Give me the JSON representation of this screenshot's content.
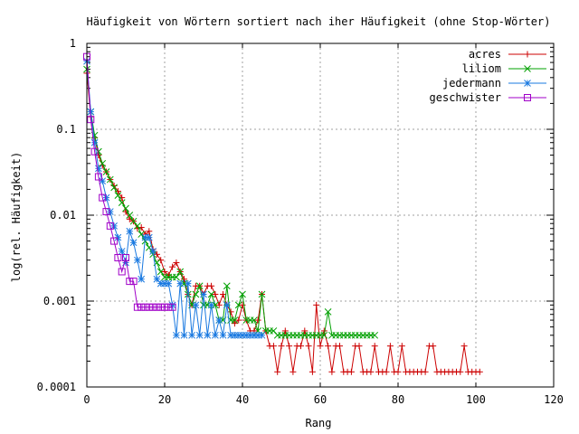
{
  "chart_data": {
    "type": "line",
    "title": "Häufigkeit von Wörtern sortiert nach iher Häufigkeit (ohne Stop-Wörter)",
    "xlabel": "Rang",
    "ylabel": "log(rel. Häufigkeit)",
    "xlim": [
      0,
      120
    ],
    "ylim": [
      0.0001,
      1
    ],
    "yscale": "log",
    "grid": true,
    "legend_position": "top-right",
    "x_ticks": [
      "0",
      "20",
      "40",
      "60",
      "80",
      "100",
      "120"
    ],
    "y_ticks": [
      "0.0001",
      "0.001",
      "0.01",
      "0.1",
      "1"
    ],
    "series": [
      {
        "name": "acres",
        "color": "#cc0000",
        "marker": "plus",
        "x": [
          0,
          1,
          2,
          3,
          4,
          5,
          6,
          7,
          8,
          9,
          10,
          11,
          12,
          13,
          14,
          15,
          16,
          17,
          18,
          19,
          20,
          21,
          22,
          23,
          24,
          25,
          26,
          27,
          28,
          29,
          30,
          31,
          32,
          33,
          34,
          35,
          36,
          37,
          38,
          39,
          40,
          41,
          42,
          43,
          44,
          45,
          46,
          47,
          48,
          49,
          50,
          51,
          52,
          53,
          54,
          55,
          56,
          57,
          58,
          59,
          60,
          61,
          62,
          63,
          64,
          65,
          66,
          67,
          68,
          69,
          70,
          71,
          72,
          73,
          74,
          75,
          76,
          77,
          78,
          79,
          80,
          81,
          82,
          83,
          84,
          85,
          86,
          87,
          88,
          89,
          90,
          91,
          92,
          93,
          94,
          95,
          96,
          97,
          98,
          99,
          100,
          101
        ],
        "values": [
          0.45,
          0.14,
          0.08,
          0.05,
          0.038,
          0.032,
          0.026,
          0.022,
          0.019,
          0.016,
          0.011,
          0.009,
          0.0085,
          0.007,
          0.0072,
          0.006,
          0.0065,
          0.004,
          0.0035,
          0.003,
          0.0022,
          0.002,
          0.0025,
          0.0028,
          0.0022,
          0.0018,
          0.0012,
          0.0009,
          0.0015,
          0.0015,
          0.0012,
          0.0015,
          0.0015,
          0.0012,
          0.0009,
          0.0012,
          0.0009,
          0.00075,
          0.00055,
          0.0006,
          0.0009,
          0.0006,
          0.00045,
          0.00045,
          0.0006,
          0.0012,
          0.00045,
          0.0003,
          0.0003,
          0.00015,
          0.0003,
          0.00045,
          0.0003,
          0.00015,
          0.0003,
          0.0003,
          0.00045,
          0.0003,
          0.00015,
          0.0009,
          0.0003,
          0.00045,
          0.0003,
          0.00015,
          0.0003,
          0.0003,
          0.00015,
          0.00015,
          0.00015,
          0.0003,
          0.0003,
          0.00015,
          0.00015,
          0.00015,
          0.0003,
          0.00015,
          0.00015,
          0.00015,
          0.0003,
          0.00015,
          0.00015,
          0.0003,
          0.00015,
          0.00015,
          0.00015,
          0.00015,
          0.00015,
          0.00015,
          0.0003,
          0.0003,
          0.00015,
          0.00015,
          0.00015,
          0.00015,
          0.00015,
          0.00015,
          0.00015,
          0.0003,
          0.00015,
          0.00015,
          0.00015,
          0.00015
        ]
      },
      {
        "name": "liliom",
        "color": "#00a000",
        "marker": "cross",
        "x": [
          0,
          1,
          2,
          3,
          4,
          5,
          6,
          7,
          8,
          9,
          10,
          11,
          12,
          13,
          14,
          15,
          16,
          17,
          18,
          19,
          20,
          21,
          22,
          23,
          24,
          25,
          26,
          27,
          28,
          29,
          30,
          31,
          32,
          33,
          34,
          35,
          36,
          37,
          38,
          39,
          40,
          41,
          42,
          43,
          44,
          45,
          46,
          47,
          48,
          49,
          50,
          51,
          52,
          53,
          54,
          55,
          56,
          57,
          58,
          59,
          60,
          61,
          62,
          63,
          64,
          65,
          66,
          67,
          68,
          69,
          70,
          71,
          72,
          73,
          74
        ],
        "values": [
          0.5,
          0.16,
          0.085,
          0.055,
          0.04,
          0.032,
          0.026,
          0.021,
          0.017,
          0.014,
          0.012,
          0.01,
          0.0085,
          0.0075,
          0.006,
          0.005,
          0.0042,
          0.0035,
          0.0028,
          0.0022,
          0.0019,
          0.0019,
          0.0019,
          0.0019,
          0.0022,
          0.0016,
          0.0012,
          0.0009,
          0.0012,
          0.0015,
          0.0009,
          0.0009,
          0.0012,
          0.0009,
          0.0006,
          0.0006,
          0.0015,
          0.0006,
          0.0006,
          0.0009,
          0.0012,
          0.0006,
          0.0006,
          0.0006,
          0.00045,
          0.0012,
          0.00045,
          0.00045,
          0.00045,
          0.0004,
          0.0004,
          0.0004,
          0.0004,
          0.0004,
          0.0004,
          0.0004,
          0.0004,
          0.0004,
          0.0004,
          0.0004,
          0.0004,
          0.0004,
          0.00075,
          0.0004,
          0.0004,
          0.0004,
          0.0004,
          0.0004,
          0.0004,
          0.0004,
          0.0004,
          0.0004,
          0.0004,
          0.0004,
          0.0004
        ]
      },
      {
        "name": "jedermann",
        "color": "#1878e0",
        "marker": "star",
        "x": [
          0,
          1,
          2,
          3,
          4,
          5,
          6,
          7,
          8,
          9,
          10,
          11,
          12,
          13,
          14,
          15,
          16,
          17,
          18,
          19,
          20,
          21,
          22,
          23,
          24,
          25,
          26,
          27,
          28,
          29,
          30,
          31,
          32,
          33,
          34,
          35,
          36,
          37,
          38,
          39,
          40,
          41,
          42,
          43,
          44,
          45
        ],
        "values": [
          0.62,
          0.16,
          0.07,
          0.035,
          0.025,
          0.016,
          0.011,
          0.0075,
          0.0055,
          0.0038,
          0.0028,
          0.0065,
          0.0048,
          0.003,
          0.0018,
          0.0055,
          0.0055,
          0.0038,
          0.0018,
          0.0016,
          0.0016,
          0.0016,
          0.0009,
          0.0004,
          0.0016,
          0.0004,
          0.0016,
          0.0004,
          0.0009,
          0.0004,
          0.0012,
          0.0004,
          0.0009,
          0.0004,
          0.0006,
          0.0004,
          0.0009,
          0.0004,
          0.0004,
          0.0004,
          0.0004,
          0.0004,
          0.0004,
          0.0004,
          0.0004,
          0.0004
        ]
      },
      {
        "name": "geschwister",
        "color": "#a000c8",
        "marker": "square",
        "x": [
          0,
          1,
          2,
          3,
          4,
          5,
          6,
          7,
          8,
          9,
          10,
          11,
          12,
          13,
          14,
          15,
          16,
          17,
          18,
          19,
          20,
          21,
          22
        ],
        "values": [
          0.7,
          0.13,
          0.055,
          0.028,
          0.016,
          0.011,
          0.0075,
          0.005,
          0.0032,
          0.0022,
          0.0032,
          0.0017,
          0.0017,
          0.00085,
          0.00085,
          0.00085,
          0.00085,
          0.00085,
          0.00085,
          0.00085,
          0.00085,
          0.00085,
          0.00085
        ]
      }
    ]
  }
}
